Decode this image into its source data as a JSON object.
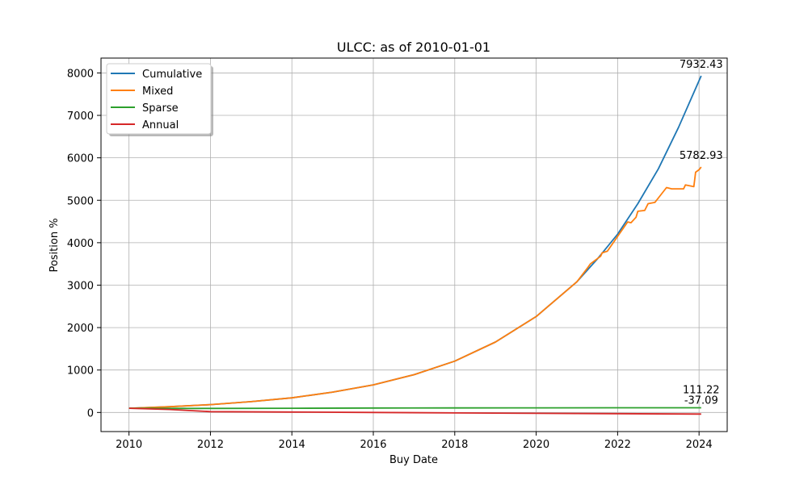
{
  "chart_data": {
    "type": "line",
    "title": "ULCC: as of 2010-01-01",
    "xlabel": "Buy Date",
    "ylabel": "Position %",
    "xlim": [
      "2009-04-25",
      "2024-09-10"
    ],
    "ylim": [
      -450,
      8350
    ],
    "x_ticks": [
      "2010",
      "2012",
      "2014",
      "2016",
      "2018",
      "2020",
      "2022",
      "2024"
    ],
    "y_ticks": [
      0,
      1000,
      2000,
      3000,
      4000,
      5000,
      6000,
      7000,
      8000
    ],
    "grid": true,
    "legend_placement": "upper-left",
    "series": [
      {
        "name": "Cumulative",
        "color": "#1f77b4",
        "end_label": "7932.43",
        "points": [
          [
            "2010-01-01",
            100
          ],
          [
            "2011-01-01",
            135
          ],
          [
            "2012-01-01",
            185
          ],
          [
            "2013-01-01",
            255
          ],
          [
            "2014-01-01",
            345
          ],
          [
            "2015-01-01",
            480
          ],
          [
            "2016-01-01",
            650
          ],
          [
            "2017-01-01",
            890
          ],
          [
            "2018-01-01",
            1210
          ],
          [
            "2019-01-01",
            1660
          ],
          [
            "2020-01-01",
            2260
          ],
          [
            "2021-01-01",
            3080
          ],
          [
            "2021-07-01",
            3610
          ],
          [
            "2022-01-01",
            4200
          ],
          [
            "2022-07-01",
            4920
          ],
          [
            "2023-01-01",
            5740
          ],
          [
            "2023-07-01",
            6720
          ],
          [
            "2024-01-20",
            7932.43
          ]
        ]
      },
      {
        "name": "Mixed",
        "color": "#ff7f0e",
        "end_label": "5782.93",
        "points": [
          [
            "2010-01-01",
            100
          ],
          [
            "2011-01-01",
            135
          ],
          [
            "2012-01-01",
            185
          ],
          [
            "2013-01-01",
            255
          ],
          [
            "2014-01-01",
            345
          ],
          [
            "2015-01-01",
            480
          ],
          [
            "2016-01-01",
            650
          ],
          [
            "2017-01-01",
            890
          ],
          [
            "2018-01-01",
            1210
          ],
          [
            "2019-01-01",
            1660
          ],
          [
            "2020-01-01",
            2260
          ],
          [
            "2021-01-01",
            3080
          ],
          [
            "2021-04-10",
            3420
          ],
          [
            "2021-05-01",
            3500
          ],
          [
            "2021-08-01",
            3680
          ],
          [
            "2021-08-15",
            3760
          ],
          [
            "2021-10-01",
            3800
          ],
          [
            "2022-01-01",
            4150
          ],
          [
            "2022-04-01",
            4490
          ],
          [
            "2022-05-01",
            4470
          ],
          [
            "2022-06-15",
            4600
          ],
          [
            "2022-07-01",
            4740
          ],
          [
            "2022-09-01",
            4760
          ],
          [
            "2022-10-01",
            4920
          ],
          [
            "2022-12-01",
            4950
          ],
          [
            "2023-01-15",
            5100
          ],
          [
            "2023-03-15",
            5300
          ],
          [
            "2023-05-01",
            5270
          ],
          [
            "2023-08-15",
            5270
          ],
          [
            "2023-09-01",
            5360
          ],
          [
            "2023-11-15",
            5320
          ],
          [
            "2023-12-01",
            5660
          ],
          [
            "2024-01-01",
            5720
          ],
          [
            "2024-01-20",
            5782.93
          ]
        ]
      },
      {
        "name": "Sparse",
        "color": "#2ca02c",
        "end_label": "111.22",
        "points": [
          [
            "2010-01-01",
            100
          ],
          [
            "2011-01-01",
            95
          ],
          [
            "2012-01-01",
            95
          ],
          [
            "2014-01-01",
            100
          ],
          [
            "2016-01-01",
            105
          ],
          [
            "2018-01-01",
            107
          ],
          [
            "2020-01-01",
            109
          ],
          [
            "2022-01-01",
            110
          ],
          [
            "2024-01-20",
            111.22
          ]
        ]
      },
      {
        "name": "Annual",
        "color": "#d62728",
        "end_label": "-37.09",
        "points": [
          [
            "2010-01-01",
            100
          ],
          [
            "2011-01-01",
            70
          ],
          [
            "2012-01-01",
            20
          ],
          [
            "2014-01-01",
            10
          ],
          [
            "2016-01-01",
            0
          ],
          [
            "2018-01-01",
            -10
          ],
          [
            "2020-01-01",
            -20
          ],
          [
            "2022-01-01",
            -28
          ],
          [
            "2024-01-20",
            -37.09
          ]
        ]
      }
    ]
  }
}
